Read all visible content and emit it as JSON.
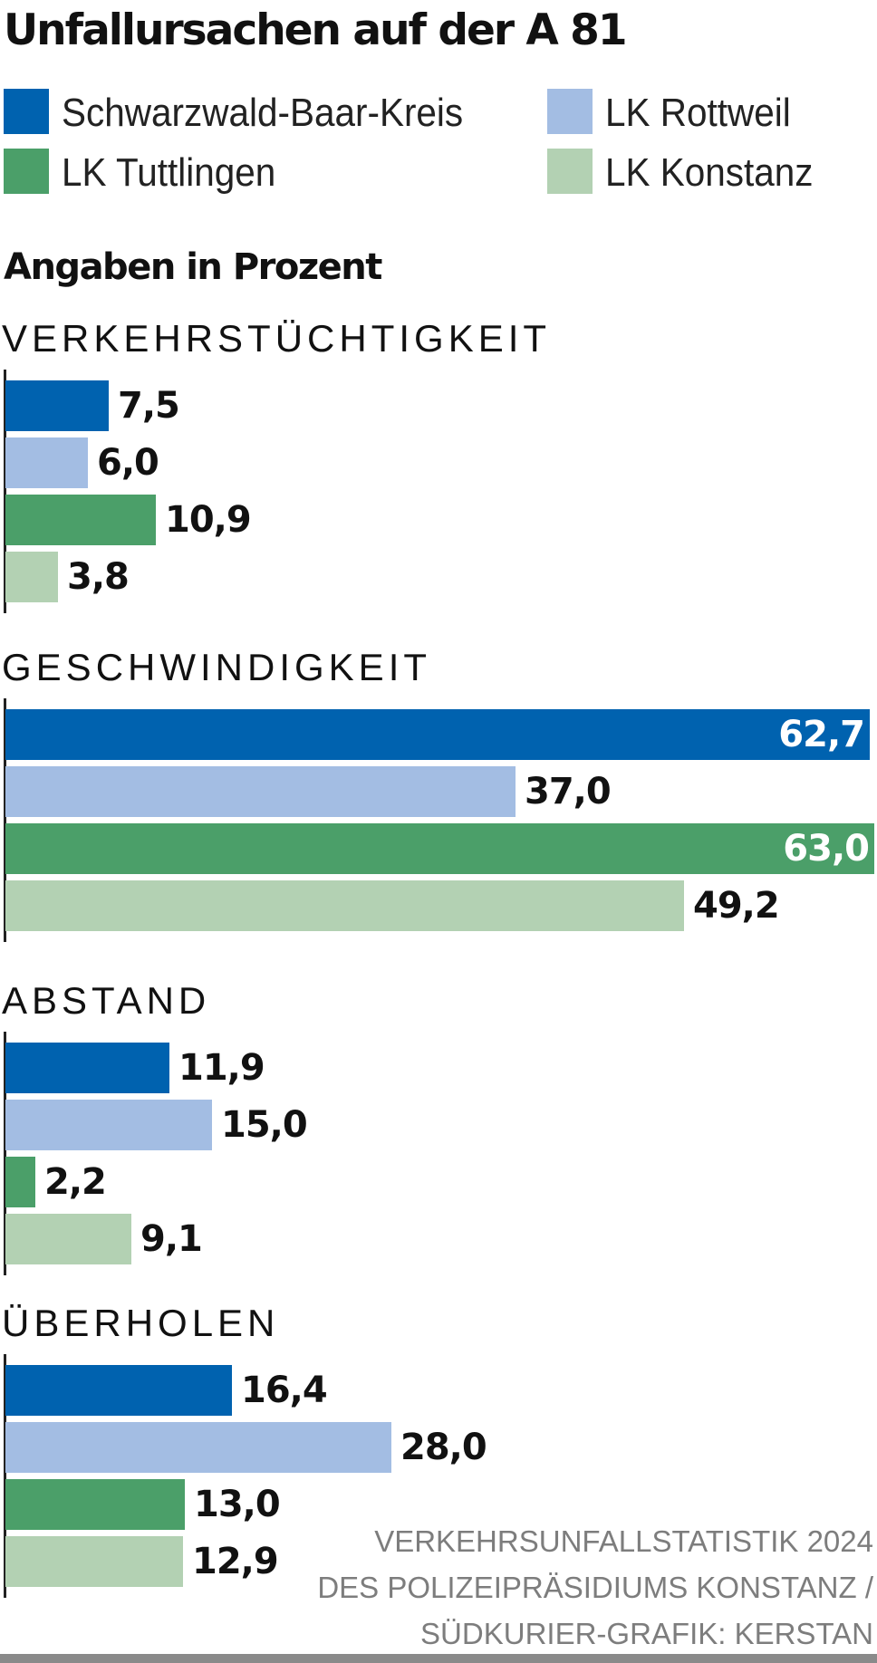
{
  "chart_data": {
    "type": "bar",
    "orientation": "horizontal",
    "title": "Unfallursachen auf der A 81",
    "subtitle": "Angaben in Prozent",
    "categories": [
      "VERKEHRSTÜCHTIGKEIT",
      "GESCHWINDIGKEIT",
      "ABSTAND",
      "ÜBERHOLEN"
    ],
    "series": [
      {
        "name": "Schwarzwald-Baar-Kreis",
        "color": "#0062af",
        "values": [
          7.5,
          62.7,
          11.9,
          16.4
        ],
        "labels": [
          "7,5",
          "62,7",
          "11,9",
          "16,4"
        ]
      },
      {
        "name": "LK Rottweil",
        "color": "#a3bde3",
        "values": [
          6.0,
          37.0,
          15.0,
          28.0
        ],
        "labels": [
          "6,0",
          "37,0",
          "15,0",
          "28,0"
        ]
      },
      {
        "name": "LK Tuttlingen",
        "color": "#4b9f69",
        "values": [
          10.9,
          63.0,
          2.2,
          13.0
        ],
        "labels": [
          "10,9",
          "63,0",
          "2,2",
          "13,0"
        ]
      },
      {
        "name": "LK Konstanz",
        "color": "#b3d1b3",
        "values": [
          3.8,
          49.2,
          9.1,
          12.9
        ],
        "labels": [
          "3,8",
          "49,2",
          "9,1",
          "12,9"
        ]
      }
    ],
    "legend": {
      "position": "top",
      "columns": 2,
      "order": [
        "Schwarzwald-Baar-Kreis",
        "LK Rottweil",
        "LK Tuttlingen",
        "LK Konstanz"
      ]
    },
    "xlim": [
      0,
      63
    ],
    "grid": false,
    "source_lines": [
      "VERKEHRSUNFALLSTATISTIK 2024",
      "DES POLIZEIPRÄSIDIUMS KONSTANZ /",
      "SÜDKURIER-GRAFIK: KERSTAN"
    ]
  }
}
